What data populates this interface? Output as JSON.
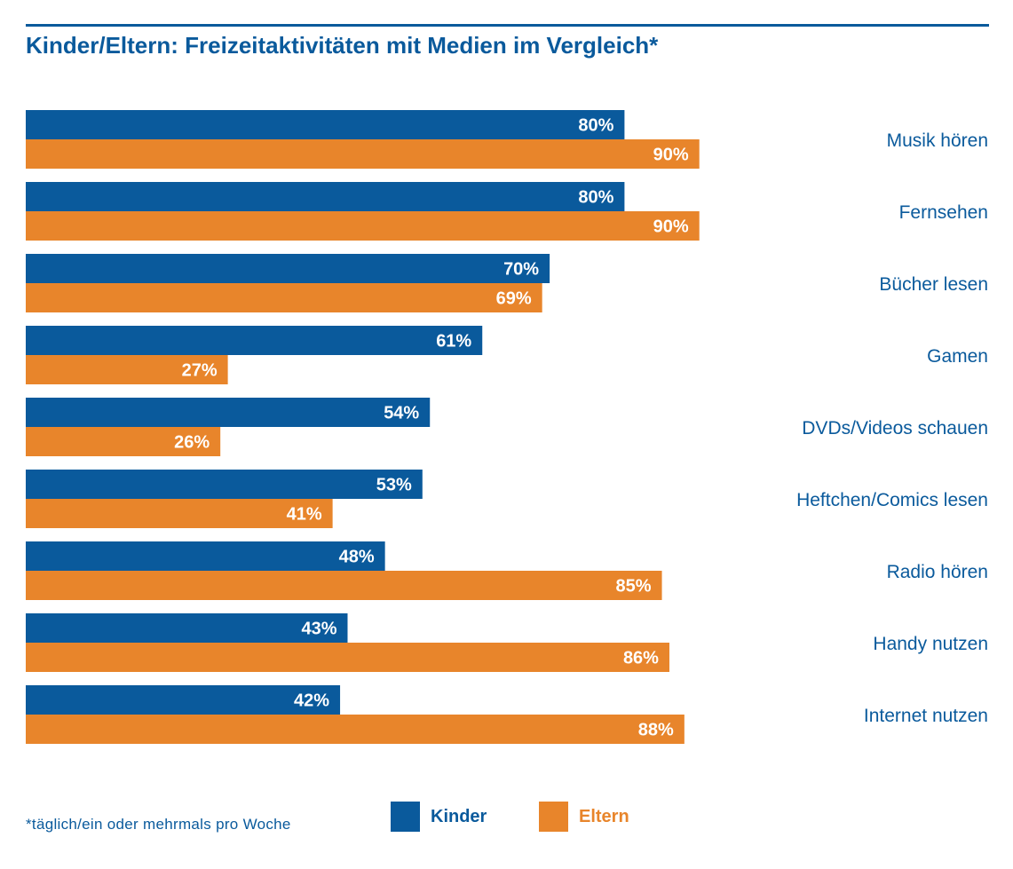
{
  "title": "Kinder/Eltern: Freizeitaktivitäten mit Medien im Vergleich*",
  "footnote": "*täglich/ein oder mehrmals pro Woche",
  "colors": {
    "kinder": "#0a5a9c",
    "eltern": "#e8852b",
    "text": "#0a5a9c"
  },
  "chart_data": {
    "type": "bar",
    "orientation": "horizontal",
    "title": "Kinder/Eltern: Freizeitaktivitäten mit Medien im Vergleich*",
    "categories": [
      "Musik hören",
      "Fernsehen",
      "Bücher lesen",
      "Gamen",
      "DVDs/Videos schauen",
      "Heftchen/Comics lesen",
      "Radio hören",
      "Handy nutzen",
      "Internet nutzen"
    ],
    "series": [
      {
        "name": "Kinder",
        "values": [
          80,
          80,
          70,
          61,
          54,
          53,
          48,
          43,
          42
        ],
        "labels": [
          "80%",
          "80%",
          "70%",
          "61%",
          "54%",
          "53%",
          "48%",
          "43%",
          "42%"
        ]
      },
      {
        "name": "Eltern",
        "values": [
          90,
          90,
          69,
          27,
          26,
          41,
          85,
          86,
          88
        ],
        "labels": [
          "90%",
          "90%",
          "69%",
          "27%",
          "26%",
          "41%",
          "85%",
          "86%",
          "88%"
        ]
      }
    ],
    "xlim": [
      0,
      100
    ],
    "unit": "%",
    "grid": false,
    "legend": "bottom"
  },
  "legend": {
    "kinder": "Kinder",
    "eltern": "Eltern"
  }
}
